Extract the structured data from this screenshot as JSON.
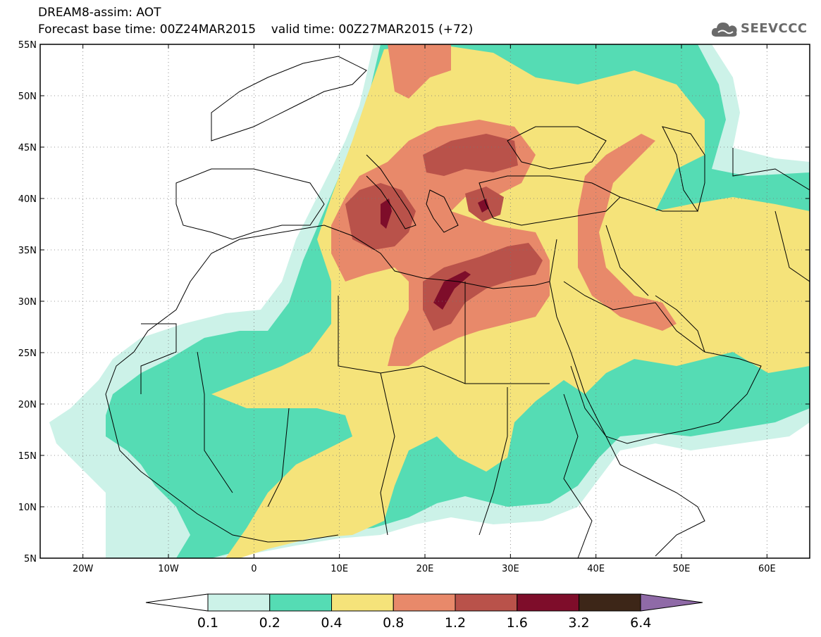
{
  "title": {
    "line1": "DREAM8-assim: AOT",
    "base_label": "Forecast base time: 00Z24MAR2015",
    "valid_label": "valid time: 00Z27MAR2015 (+72)"
  },
  "logo": {
    "text": "SEEVCCC",
    "icon": "cloud-icon"
  },
  "map": {
    "lon_range": [
      -25,
      65
    ],
    "lat_range": [
      5,
      55
    ],
    "lat_ticks": [
      {
        "v": 55,
        "label": "55N"
      },
      {
        "v": 50,
        "label": "50N"
      },
      {
        "v": 45,
        "label": "45N"
      },
      {
        "v": 40,
        "label": "40N"
      },
      {
        "v": 35,
        "label": "35N"
      },
      {
        "v": 30,
        "label": "30N"
      },
      {
        "v": 25,
        "label": "25N"
      },
      {
        "v": 20,
        "label": "20N"
      },
      {
        "v": 15,
        "label": "15N"
      },
      {
        "v": 10,
        "label": "10N"
      },
      {
        "v": 5,
        "label": "5N"
      }
    ],
    "lon_ticks": [
      {
        "v": -20,
        "label": "20W"
      },
      {
        "v": -10,
        "label": "10W"
      },
      {
        "v": 0,
        "label": "0"
      },
      {
        "v": 10,
        "label": "10E"
      },
      {
        "v": 20,
        "label": "20E"
      },
      {
        "v": 30,
        "label": "30E"
      },
      {
        "v": 40,
        "label": "40E"
      },
      {
        "v": 50,
        "label": "50E"
      },
      {
        "v": 60,
        "label": "60E"
      }
    ]
  },
  "colorbar": {
    "colors": [
      "#ccf2e8",
      "#55dcb4",
      "#f5e37a",
      "#e8896a",
      "#b9524a",
      "#7e0d2a",
      "#3d2618",
      "#8f6aa7"
    ],
    "labels": [
      "0.1",
      "0.2",
      "0.4",
      "0.8",
      "1.2",
      "1.6",
      "3.2",
      "6.4"
    ]
  }
}
